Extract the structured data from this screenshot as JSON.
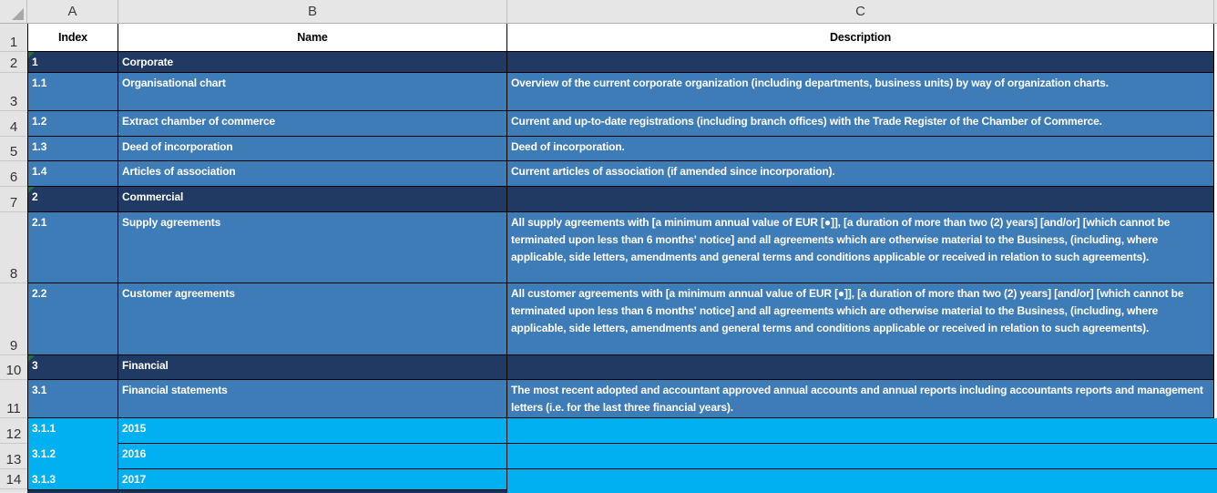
{
  "colors": {
    "section_navy": "#203a64",
    "item_blue": "#3e7cb8",
    "year_cyan": "#00b0f0",
    "flag_green": "#1e7145",
    "header_gray": "#e6e6e6"
  },
  "columns": {
    "a": "A",
    "b": "B",
    "c": "C"
  },
  "rows": {
    "r1": {
      "num": "1",
      "index": "Index",
      "name": "Name",
      "description": "Description"
    },
    "r2": {
      "num": "2",
      "index": "1",
      "name": "Corporate",
      "description": ""
    },
    "r3": {
      "num": "3",
      "index": "1.1",
      "name": "Organisational chart",
      "description": "Overview of the current corporate organization (including departments, business units) by way of organization charts."
    },
    "r4": {
      "num": "4",
      "index": "1.2",
      "name": "Extract chamber of commerce",
      "description": "Current and up-to-date registrations (including branch offices) with the Trade Register of the Chamber of Commerce."
    },
    "r5": {
      "num": "5",
      "index": "1.3",
      "name": "Deed of incorporation",
      "description": "Deed of incorporation."
    },
    "r6": {
      "num": "6",
      "index": "1.4",
      "name": "Articles of association",
      "description": "Current articles of association (if amended since incorporation)."
    },
    "r7": {
      "num": "7",
      "index": "2",
      "name": "Commercial",
      "description": ""
    },
    "r8": {
      "num": "8",
      "index": "2.1",
      "name": "Supply agreements",
      "description": "All supply agreements with [a minimum annual value of EUR [●]], [a duration of more than two (2) years] [and/or] [which cannot be terminated upon less than 6 months' notice] and all agreements which are otherwise material to the Business, (including, where applicable, side letters, amendments and general terms and conditions applicable or received in relation to such agreements)."
    },
    "r9": {
      "num": "9",
      "index": "2.2",
      "name": "Customer agreements",
      "description": "All customer agreements with [a minimum annual value of EUR [●]], [a duration of more than two (2) years] [and/or] [which cannot be terminated upon less than 6 months' notice] and all agreements which are otherwise material to the Business, (including, where applicable, side letters, amendments and general terms and conditions applicable or received in relation to such agreements)."
    },
    "r10": {
      "num": "10",
      "index": "3",
      "name": "Financial",
      "description": ""
    },
    "r11": {
      "num": "11",
      "index": "3.1",
      "name": "Financial statements",
      "description": "The most recent adopted and accountant approved annual accounts and annual reports including accountants reports and management letters (i.e. for the last three financial years)."
    },
    "r12": {
      "num": "12",
      "index": "3.1.1",
      "name": "2015",
      "description": ""
    },
    "r13": {
      "num": "13",
      "index": "3.1.2",
      "name": "2016",
      "description": ""
    },
    "r14": {
      "num": "14",
      "index": "3.1.3",
      "name": "2017",
      "description": ""
    }
  }
}
